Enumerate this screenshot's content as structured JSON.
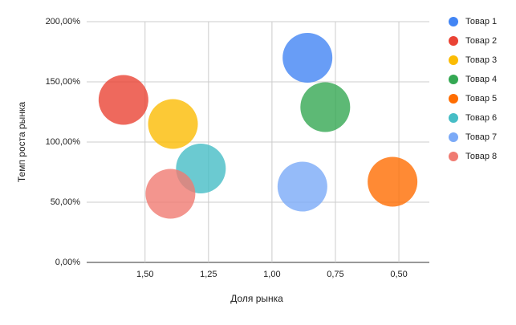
{
  "chart_data": {
    "type": "bubble",
    "x_axis_label": "Доля рынка",
    "y_axis_label": "Темп роста рынка",
    "x_reversed": true,
    "xlim": [
      1.73,
      0.38
    ],
    "xticks": [
      {
        "value": 1.5,
        "label": "1,50"
      },
      {
        "value": 1.25,
        "label": "1,25"
      },
      {
        "value": 1.0,
        "label": "1,00"
      },
      {
        "value": 0.75,
        "label": "0,75"
      },
      {
        "value": 0.5,
        "label": "0,50"
      }
    ],
    "ylim": [
      0,
      200
    ],
    "yticks": [
      {
        "value": 0,
        "label": "0,00%"
      },
      {
        "value": 50,
        "label": "50,00%"
      },
      {
        "value": 100,
        "label": "100,00%"
      },
      {
        "value": 150,
        "label": "150,00%"
      },
      {
        "value": 200,
        "label": "200,00%"
      }
    ],
    "grid": true,
    "legend": "right",
    "series": [
      {
        "name": "Товар 1",
        "color": "#4285f4",
        "x": [
          0.86
        ],
        "values": [
          170
        ],
        "sizes": [
          1
        ]
      },
      {
        "name": "Товар 2",
        "color": "#ea4335",
        "x": [
          1.585
        ],
        "values": [
          135
        ],
        "sizes": [
          1
        ]
      },
      {
        "name": "Товар 3",
        "color": "#fbbc04",
        "x": [
          1.39
        ],
        "values": [
          115
        ],
        "sizes": [
          1
        ]
      },
      {
        "name": "Товар 4",
        "color": "#34a853",
        "x": [
          0.79
        ],
        "values": [
          129
        ],
        "sizes": [
          1
        ]
      },
      {
        "name": "Товар 5",
        "color": "#ff6d01",
        "x": [
          0.525
        ],
        "values": [
          67
        ],
        "sizes": [
          1
        ]
      },
      {
        "name": "Товар 6",
        "color": "#46bdc6",
        "x": [
          1.28
        ],
        "values": [
          78
        ],
        "sizes": [
          1
        ]
      },
      {
        "name": "Товар 7",
        "color": "#7baaf7",
        "x": [
          0.88
        ],
        "values": [
          63
        ],
        "sizes": [
          1
        ]
      },
      {
        "name": "Товар 8",
        "color": "#f07b72",
        "x": [
          1.4
        ],
        "values": [
          57
        ],
        "sizes": [
          1
        ]
      }
    ]
  }
}
